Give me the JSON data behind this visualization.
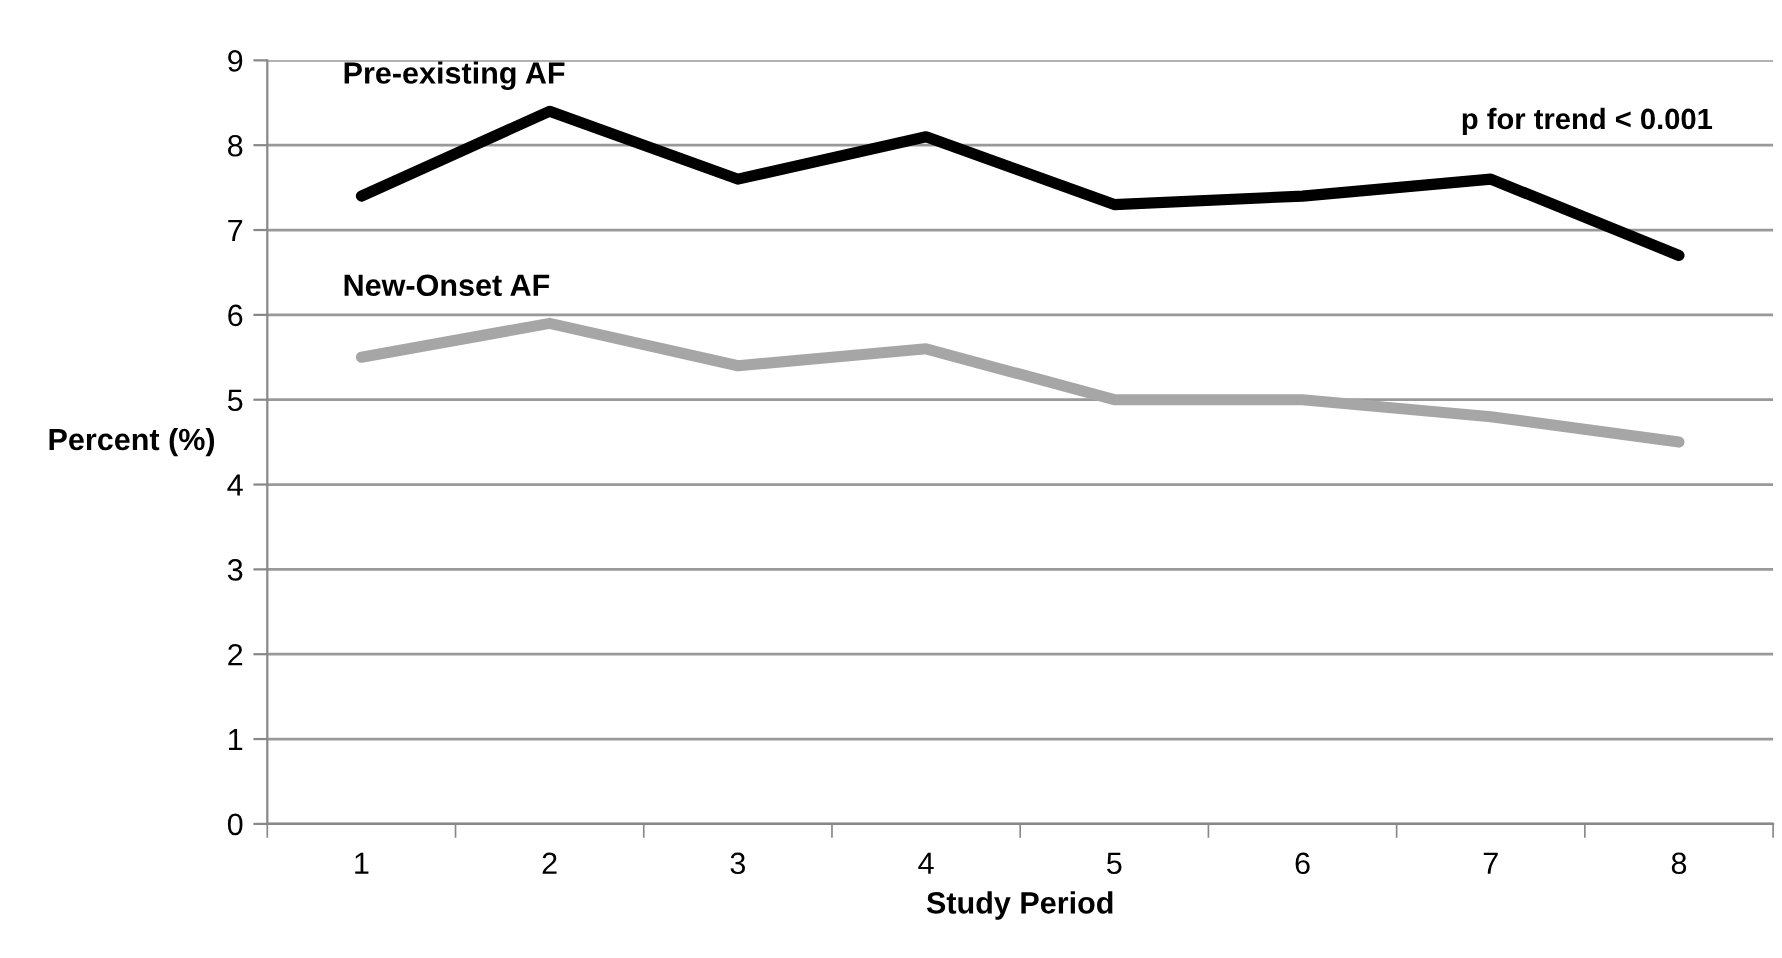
{
  "chart_data": {
    "type": "line",
    "xlabel": "Study Period",
    "ylabel": "Percent (%)",
    "categories": [
      "1",
      "2",
      "3",
      "4",
      "5",
      "6",
      "7",
      "8"
    ],
    "series": [
      {
        "name": "Pre-existing AF",
        "color": "#000000",
        "values": [
          7.4,
          8.4,
          7.6,
          8.1,
          7.3,
          7.4,
          7.6,
          6.7
        ]
      },
      {
        "name": "New-Onset AF",
        "color": "#a6a6a6",
        "values": [
          5.5,
          5.9,
          5.4,
          5.6,
          5.0,
          5.0,
          4.8,
          4.5
        ]
      }
    ],
    "ylim": [
      0,
      9
    ],
    "yticks": [
      0,
      1,
      2,
      3,
      4,
      5,
      6,
      7,
      8,
      9
    ],
    "grid": "y",
    "legend": false,
    "marker": "none",
    "line_style": "solid",
    "annotations": [
      "p for trend < 0.001"
    ]
  }
}
